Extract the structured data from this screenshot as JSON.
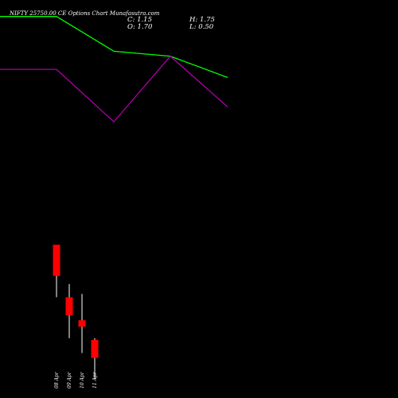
{
  "header": {
    "title": "NIFTY 25750.00  CE Options  Chart Munafasutra.com"
  },
  "ohlc": {
    "c": "C: 1.15",
    "h": "H: 1.75",
    "o": "O: 1.70",
    "l": "L: 0.50"
  },
  "colors": {
    "background": "#000000",
    "up_line": "#00ff00",
    "down_line": "#aa00aa",
    "candle": "#ff0000",
    "text": "#ffffff"
  },
  "chart_data": {
    "type": "candlestick",
    "x_labels": [
      "08 Apr",
      "09 Apr",
      "10 Apr",
      "11 Apr"
    ],
    "candles": [
      {
        "date": "08 Apr",
        "open": 4.6,
        "high": 4.6,
        "low": 3.0,
        "close": 3.65
      },
      {
        "date": "09 Apr",
        "open": 3.0,
        "high": 3.4,
        "low": 1.75,
        "close": 2.45
      },
      {
        "date": "10 Apr",
        "open": 2.3,
        "high": 3.1,
        "low": 1.3,
        "close": 2.1
      },
      {
        "date": "11 Apr",
        "open": 1.7,
        "high": 1.75,
        "low": 0.5,
        "close": 1.15
      }
    ],
    "green_line": [
      {
        "x": 0,
        "y": 11.56
      },
      {
        "x": 1,
        "y": 11.56
      },
      {
        "x": 2,
        "y": 10.5
      },
      {
        "x": 3,
        "y": 10.35
      },
      {
        "x": 4,
        "y": 9.7
      }
    ],
    "purple_line": [
      {
        "x": 0,
        "y": 9.95
      },
      {
        "x": 1,
        "y": 9.95
      },
      {
        "x": 2,
        "y": 8.35
      },
      {
        "x": 3,
        "y": 10.35
      },
      {
        "x": 4,
        "y": 8.8
      }
    ]
  }
}
